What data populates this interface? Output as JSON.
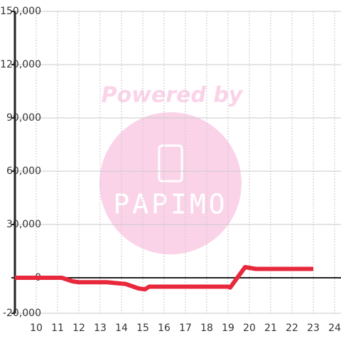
{
  "chart_data": {
    "type": "line",
    "x": [
      9,
      11.2,
      11.7,
      12,
      13.3,
      14.2,
      14.8,
      15.1,
      15.3,
      19,
      19.1,
      19.8,
      20.3,
      23
    ],
    "series": [
      {
        "color": "#e8283c",
        "values": [
          0,
          0,
          -2000,
          -2500,
          -2500,
          -3500,
          -6000,
          -6500,
          -5000,
          -5000,
          -5500,
          6000,
          5000,
          5000
        ]
      }
    ],
    "xlim": [
      9,
      24.3
    ],
    "xticks": [
      10,
      11,
      12,
      13,
      14,
      15,
      16,
      17,
      18,
      19,
      20,
      21,
      22,
      23,
      24
    ],
    "ylim": [
      -20000,
      150000
    ],
    "yticks": [
      {
        "value": -20000,
        "label": "-20,000"
      },
      0,
      {
        "value": 30000,
        "label": "30,000"
      },
      {
        "value": 60000,
        "label": "60,000"
      },
      {
        "value": 90000,
        "label": "90,000"
      },
      {
        "value": 120000,
        "label": "120,000"
      },
      {
        "value": 150000,
        "label": "150,000"
      }
    ],
    "grid": true
  },
  "watermark": {
    "caption": "Powered by",
    "logo": "PAPIMO"
  }
}
